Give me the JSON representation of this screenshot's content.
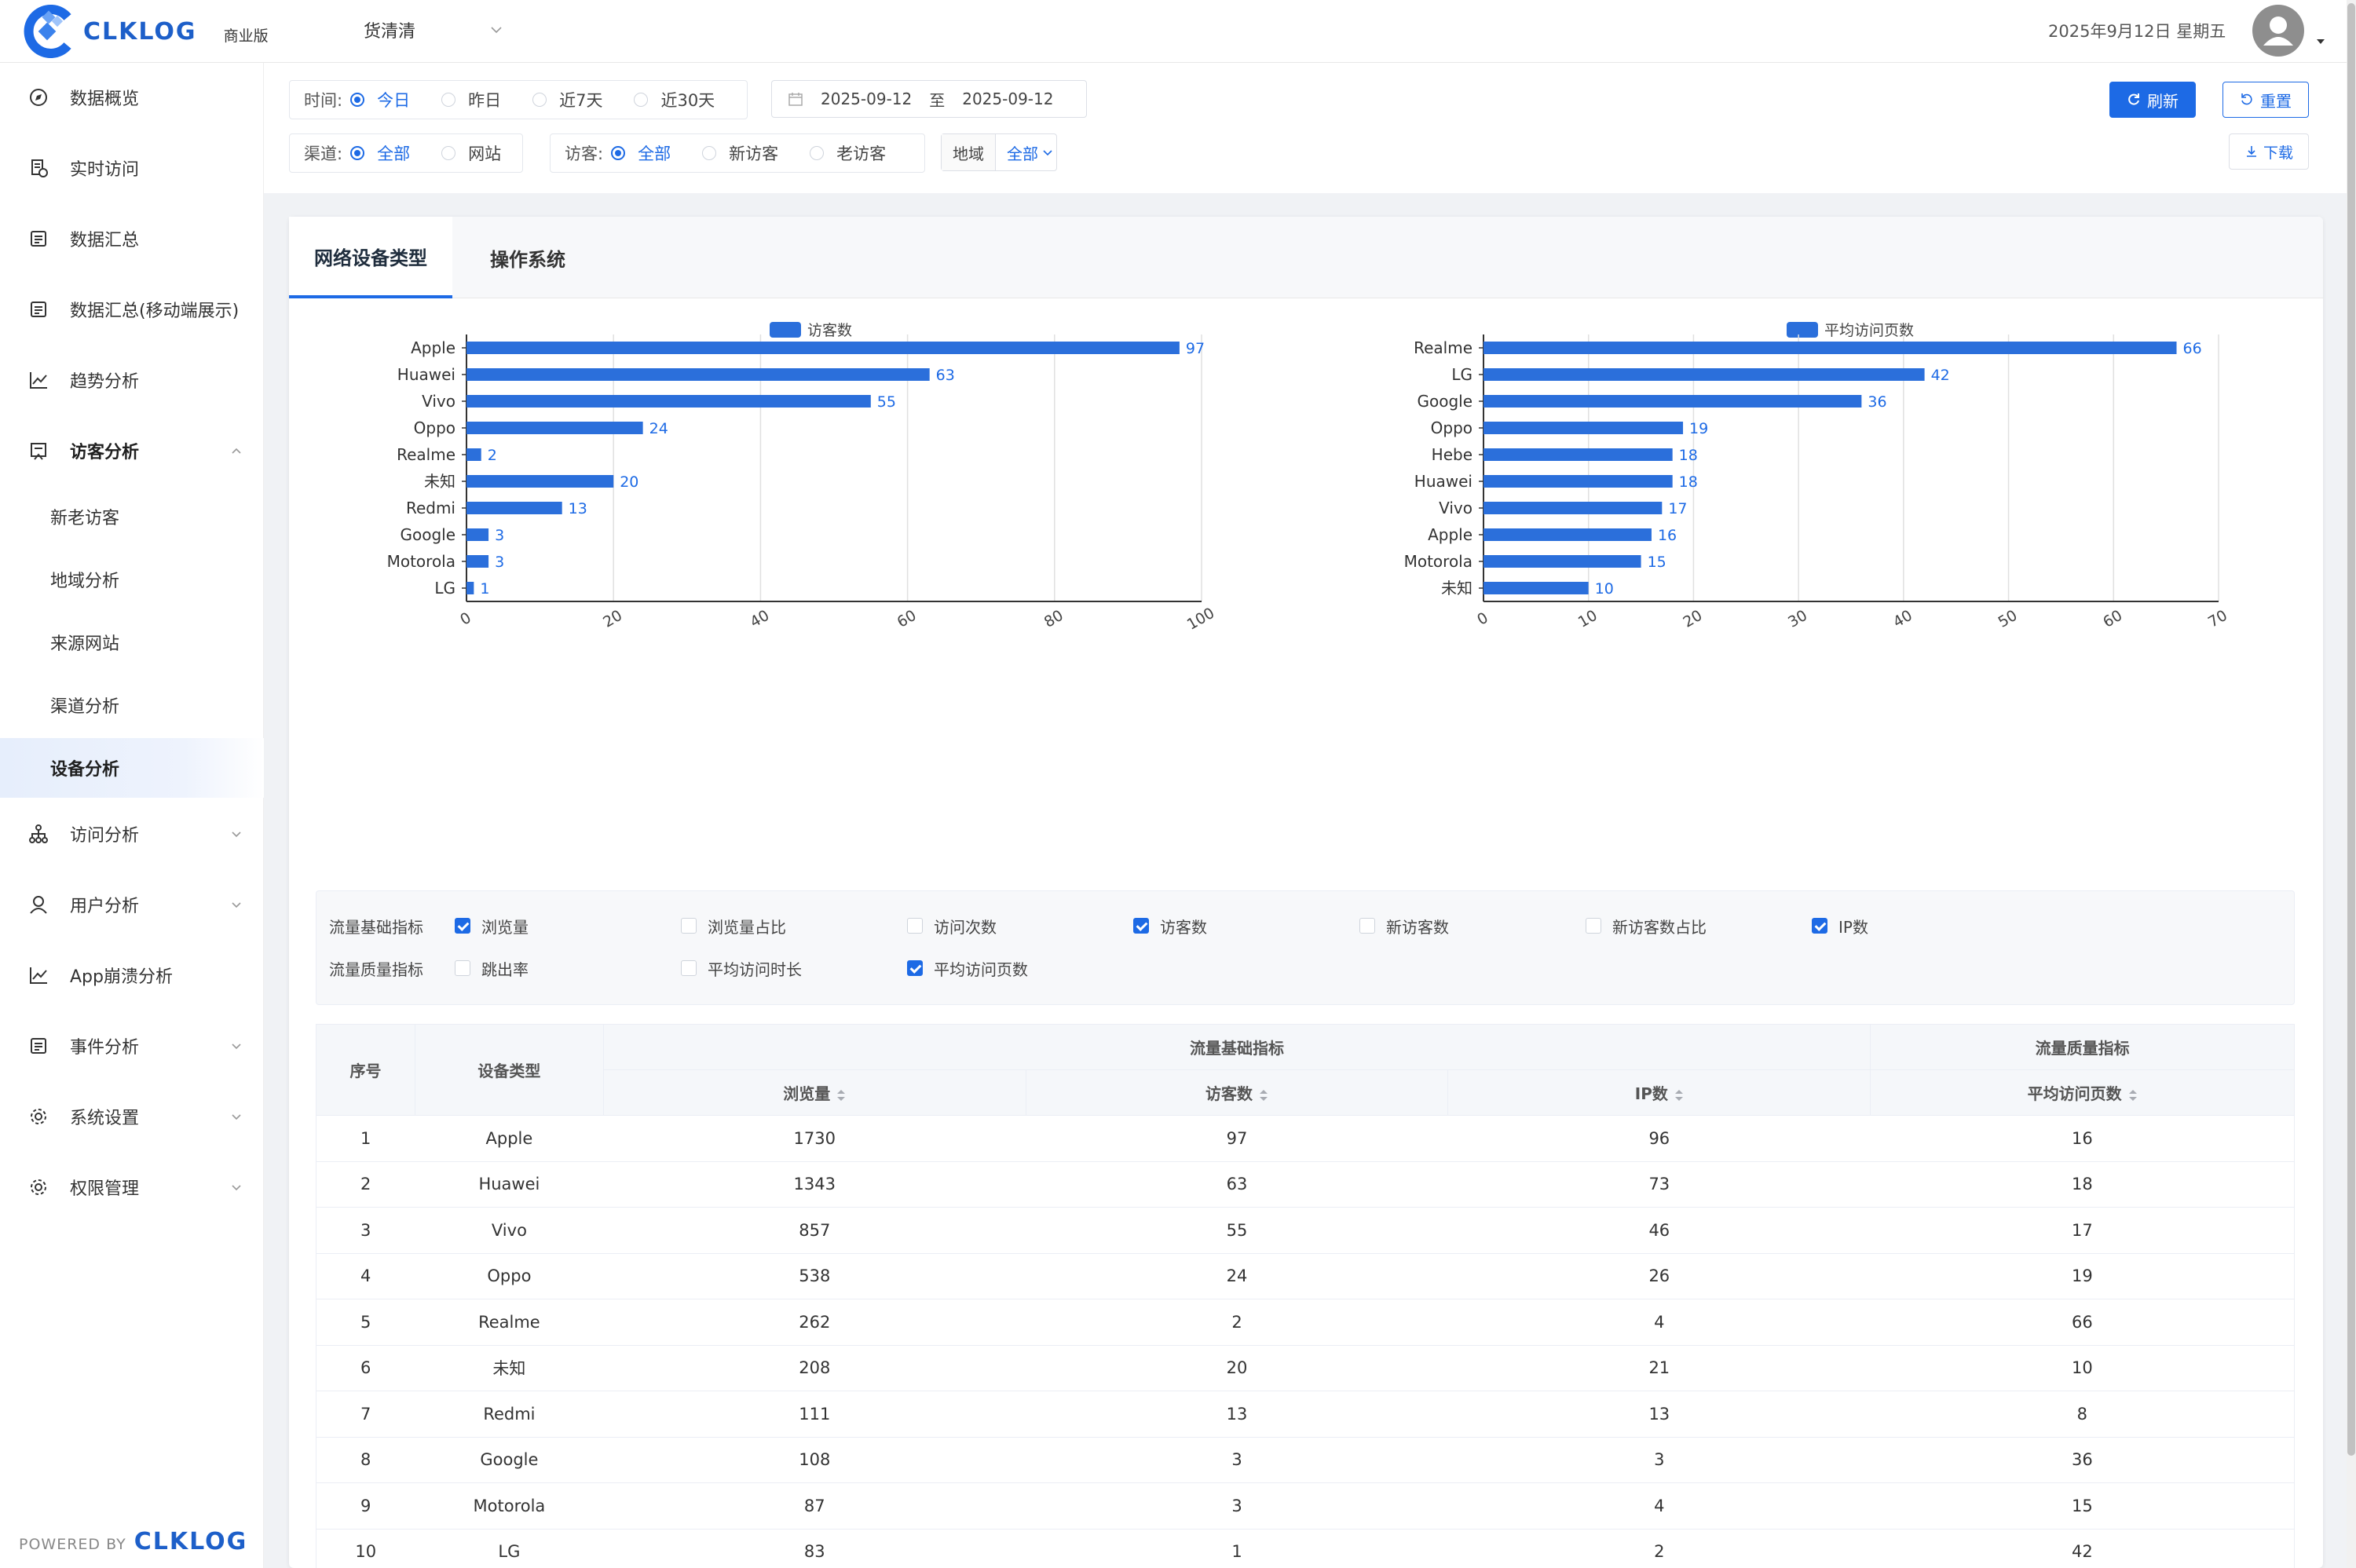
{
  "header": {
    "logo_text": "CLKLOG",
    "edition": "商业版",
    "project": "货清清",
    "date": "2025年9月12日 星期五"
  },
  "sidebar": {
    "items": [
      {
        "label": "数据概览",
        "icon": "compass-icon"
      },
      {
        "label": "实时访问",
        "icon": "realtime-icon"
      },
      {
        "label": "数据汇总",
        "icon": "summary-icon"
      },
      {
        "label": "数据汇总(移动端展示)",
        "icon": "summary-mobile-icon"
      },
      {
        "label": "趋势分析",
        "icon": "trend-icon"
      },
      {
        "label": "访客分析",
        "icon": "visitor-icon"
      },
      {
        "label": "访问分析",
        "icon": "visit-tree-icon"
      },
      {
        "label": "用户分析",
        "icon": "user-icon"
      },
      {
        "label": "App崩溃分析",
        "icon": "crash-chart-icon"
      },
      {
        "label": "事件分析",
        "icon": "event-icon"
      },
      {
        "label": "系统设置",
        "icon": "settings-gear-icon"
      },
      {
        "label": "权限管理",
        "icon": "permission-gear-icon"
      }
    ],
    "sub_items": [
      "新老访客",
      "地域分析",
      "来源网站",
      "渠道分析",
      "设备分析"
    ],
    "active_sub": "设备分析",
    "powered_by": "POWERED BY",
    "powered_logo": "CLKLOG"
  },
  "filters": {
    "time_label": "时间:",
    "time_options": [
      "今日",
      "昨日",
      "近7天",
      "近30天"
    ],
    "time_selected": "今日",
    "date_start": "2025-09-12",
    "date_sep": "至",
    "date_end": "2025-09-12",
    "channel_label": "渠道:",
    "channel_options": [
      "全部",
      "网站"
    ],
    "channel_selected": "全部",
    "visitor_label": "访客:",
    "visitor_options": [
      "全部",
      "新访客",
      "老访客"
    ],
    "visitor_selected": "全部",
    "region_label": "地域",
    "region_value": "全部",
    "refresh_label": "刷新",
    "reset_label": "重置",
    "download_label": "下载"
  },
  "tabs": [
    {
      "label": "网络设备类型",
      "active": true
    },
    {
      "label": "操作系统",
      "active": false
    }
  ],
  "chart_data": [
    {
      "type": "bar",
      "orientation": "horizontal",
      "legend": "访客数",
      "categories": [
        "Apple",
        "Huawei",
        "Vivo",
        "Oppo",
        "Realme",
        "未知",
        "Redmi",
        "Google",
        "Motorola",
        "LG"
      ],
      "values": [
        97,
        63,
        55,
        24,
        2,
        20,
        13,
        3,
        3,
        1
      ],
      "xlim": [
        0,
        100
      ],
      "xticks": [
        0,
        20,
        40,
        60,
        80,
        100
      ],
      "grid": true,
      "color": "#2b6fdb"
    },
    {
      "type": "bar",
      "orientation": "horizontal",
      "legend": "平均访问页数",
      "categories": [
        "Realme",
        "LG",
        "Google",
        "Oppo",
        "Hebe",
        "Huawei",
        "Vivo",
        "Apple",
        "Motorola",
        "未知"
      ],
      "values": [
        66,
        42,
        36,
        19,
        18,
        18,
        17,
        16,
        15,
        10
      ],
      "xlim": [
        0,
        70
      ],
      "xticks": [
        0,
        10,
        20,
        30,
        40,
        50,
        60,
        70
      ],
      "grid": true,
      "color": "#2b6fdb"
    }
  ],
  "metrics": {
    "basic_label": "流量基础指标",
    "quality_label": "流量质量指标",
    "basic": [
      {
        "label": "浏览量",
        "checked": true
      },
      {
        "label": "浏览量占比",
        "checked": false
      },
      {
        "label": "访问次数",
        "checked": false
      },
      {
        "label": "访客数",
        "checked": true
      },
      {
        "label": "新访客数",
        "checked": false
      },
      {
        "label": "新访客数占比",
        "checked": false
      },
      {
        "label": "IP数",
        "checked": true
      }
    ],
    "quality": [
      {
        "label": "跳出率",
        "checked": false
      },
      {
        "label": "平均访问时长",
        "checked": false
      },
      {
        "label": "平均访问页数",
        "checked": true
      }
    ]
  },
  "table": {
    "col_index": "序号",
    "col_device": "设备类型",
    "group_basic": "流量基础指标",
    "group_quality": "流量质量指标",
    "col_pv": "浏览量",
    "col_uv": "访客数",
    "col_ip": "IP数",
    "col_avg_pages": "平均访问页数",
    "rows": [
      [
        "1",
        "Apple",
        "1730",
        "97",
        "96",
        "16"
      ],
      [
        "2",
        "Huawei",
        "1343",
        "63",
        "73",
        "18"
      ],
      [
        "3",
        "Vivo",
        "857",
        "55",
        "46",
        "17"
      ],
      [
        "4",
        "Oppo",
        "538",
        "24",
        "26",
        "19"
      ],
      [
        "5",
        "Realme",
        "262",
        "2",
        "4",
        "66"
      ],
      [
        "6",
        "未知",
        "208",
        "20",
        "21",
        "10"
      ],
      [
        "7",
        "Redmi",
        "111",
        "13",
        "13",
        "8"
      ],
      [
        "8",
        "Google",
        "108",
        "3",
        "3",
        "36"
      ],
      [
        "9",
        "Motorola",
        "87",
        "3",
        "4",
        "15"
      ],
      [
        "10",
        "LG",
        "83",
        "1",
        "2",
        "42"
      ]
    ]
  }
}
